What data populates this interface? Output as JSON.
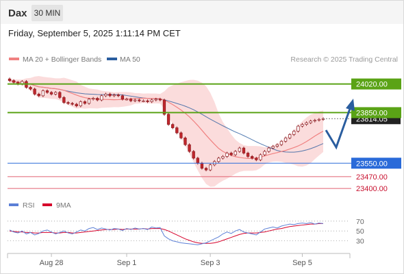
{
  "header": {
    "symbol": "Dax",
    "timeframe": "30 MIN",
    "datetime": "Friday, September 5, 2025 1:11:14 PM CET"
  },
  "legend": {
    "ma20": "MA 20 + Bollinger Bands",
    "ma50": "MA 50",
    "credit": "Research © 2025 Trading Central"
  },
  "colors": {
    "candle": "#c0272d",
    "ma20": "#f08080",
    "ma50": "#2a5d9f",
    "resistance": "#5aa316",
    "support": "#2a6ad9",
    "weak_support": "#e06070",
    "bands": "#f9d0d0",
    "rsi": "#5b7fd6",
    "rsi_ma": "#d6002a",
    "arrow": "#2a5d9f"
  },
  "levels": [
    {
      "label": "24020.00",
      "kind": "resistance"
    },
    {
      "label": "23850.00",
      "kind": "resistance"
    },
    {
      "label": "23814.05",
      "kind": "current"
    },
    {
      "label": "23550.00",
      "kind": "support"
    },
    {
      "label": "23470.00",
      "kind": "minor"
    },
    {
      "label": "23400.00",
      "kind": "minor"
    }
  ],
  "x_axis": {
    "ticks": [
      "Aug 28",
      "Sep 1",
      "Sep 3",
      "Sep 5"
    ]
  },
  "rsi": {
    "legend_rsi": "RSI",
    "legend_ma": "9MA",
    "ticks": [
      "70",
      "50",
      "30"
    ]
  },
  "chart_data": [
    {
      "type": "candlestick",
      "title": "",
      "y_unit": "index points",
      "ylim": [
        23360,
        24120
      ],
      "key_levels": [
        24020.0,
        23850.0,
        23550.0,
        23470.0,
        23400.0
      ],
      "current_price": 23814.05,
      "close_approx": [
        24040,
        24030,
        24020,
        24035,
        24000,
        23990,
        23960,
        23950,
        23980,
        23970,
        23960,
        23970,
        23940,
        23910,
        23905,
        23900,
        23890,
        23915,
        23905,
        23930,
        23935,
        23925,
        23950,
        23960,
        23950,
        23955,
        23950,
        23930,
        23930,
        23920,
        23925,
        23920,
        23920,
        23915,
        23925,
        23930,
        23925,
        23840,
        23780,
        23760,
        23730,
        23700,
        23660,
        23620,
        23580,
        23550,
        23520,
        23510,
        23540,
        23560,
        23580,
        23590,
        23610,
        23600,
        23620,
        23640,
        23610,
        23590,
        23580,
        23570,
        23600,
        23620,
        23640,
        23650,
        23660,
        23680,
        23700,
        23720,
        23740,
        23770,
        23780,
        23790,
        23800,
        23805,
        23810,
        23814
      ]
    },
    {
      "type": "line",
      "title": "",
      "series": [
        {
          "name": "RSI",
          "values": [
            52,
            48,
            46,
            50,
            44,
            47,
            42,
            45,
            50,
            52,
            48,
            44,
            47,
            50,
            46,
            44,
            48,
            52,
            50,
            55,
            57,
            53,
            56,
            54,
            52,
            55,
            54,
            51,
            55,
            53,
            56,
            54,
            55,
            53,
            58,
            56,
            57,
            40,
            34,
            30,
            28,
            26,
            25,
            24,
            23,
            22,
            24,
            26,
            30,
            34,
            38,
            44,
            48,
            45,
            50,
            53,
            48,
            46,
            44,
            42,
            48,
            54,
            56,
            58,
            56,
            60,
            62,
            64,
            63,
            65,
            66,
            65,
            67,
            64,
            66,
            65
          ]
        },
        {
          "name": "9MA",
          "values": [
            50,
            49,
            48,
            48,
            47,
            47,
            46,
            46,
            47,
            47,
            47,
            46,
            46,
            47,
            47,
            46,
            46,
            47,
            48,
            49,
            50,
            51,
            52,
            53,
            53,
            53,
            54,
            53,
            54,
            54,
            54,
            54,
            55,
            54,
            55,
            55,
            55,
            53,
            50,
            46,
            42,
            38,
            34,
            31,
            28,
            26,
            25,
            25,
            25,
            26,
            28,
            31,
            34,
            37,
            40,
            43,
            45,
            46,
            46,
            46,
            47,
            48,
            50,
            52,
            54,
            55,
            57,
            59,
            60,
            61,
            62,
            63,
            64,
            64,
            65,
            65
          ]
        }
      ],
      "ylim": [
        10,
        85
      ],
      "reference_lines": [
        70,
        50,
        30
      ]
    }
  ]
}
